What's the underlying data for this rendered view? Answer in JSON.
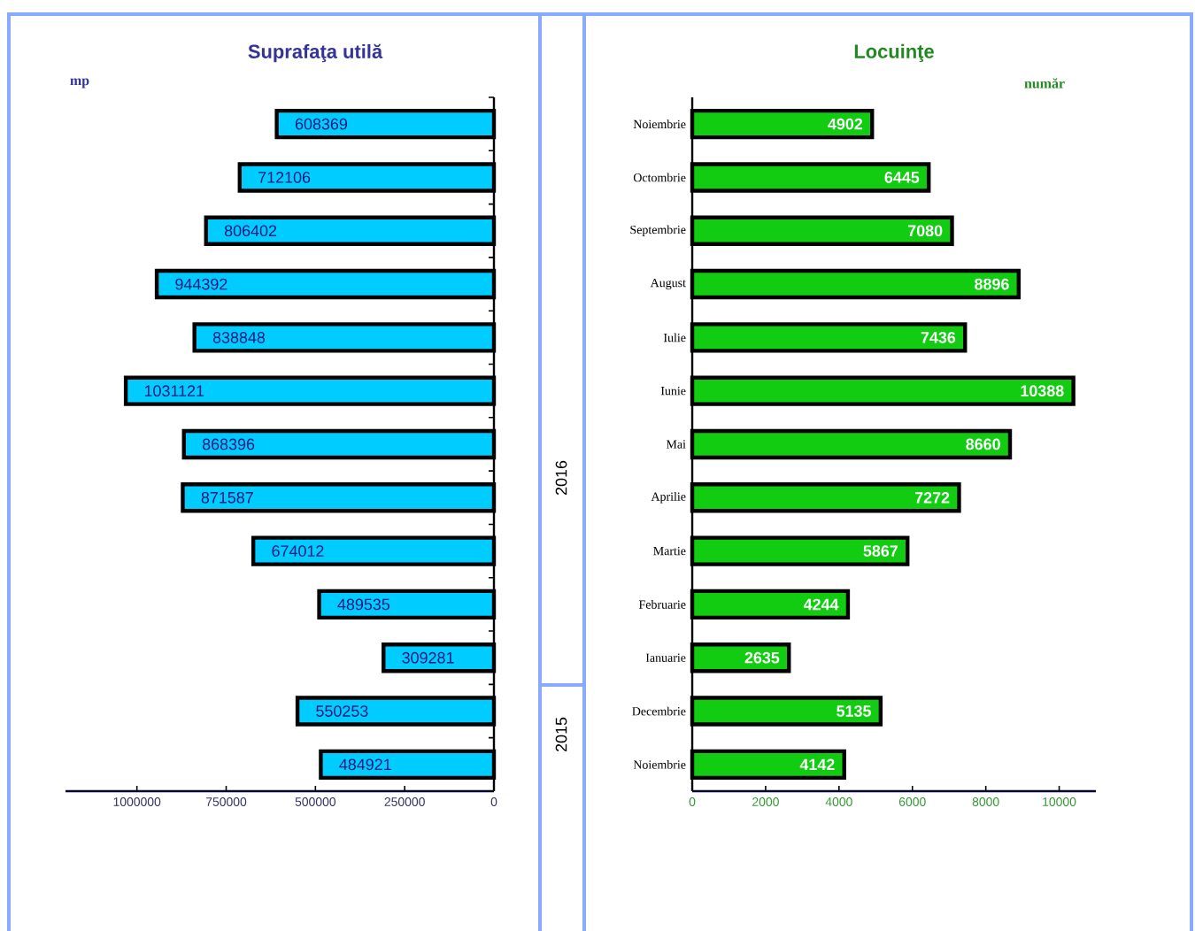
{
  "chart_data": [
    {
      "type": "bar",
      "orientation": "horizontal",
      "title": "Suprafaţa utilă",
      "xlabel": "mp",
      "categories": [
        null,
        null,
        null,
        null,
        null,
        null,
        null,
        null,
        null,
        null,
        null,
        null,
        null
      ],
      "values": [
        608369,
        712106,
        806402,
        944392,
        838848,
        1031121,
        868396,
        871587,
        674012,
        489535,
        309281,
        550253,
        484921
      ],
      "color": "#00ccff",
      "xlim": [
        1200000,
        0
      ],
      "xticks": [
        1000000,
        750000,
        500000,
        250000,
        0
      ],
      "data_labels": true,
      "tick_labels": "x"
    },
    {
      "type": "bar",
      "orientation": "horizontal",
      "title": "Locuinţe",
      "xlabel": "număr",
      "categories": [
        "Noiembrie",
        "Octombrie",
        "Septembrie",
        "August",
        "Iulie",
        "Iunie",
        "Mai",
        "Aprilie",
        "Martie",
        "Februarie",
        "Ianuarie",
        "Decembrie",
        "Noiembrie"
      ],
      "values": [
        4902,
        6445,
        7080,
        8896,
        7436,
        10388,
        8660,
        7272,
        5867,
        4244,
        2635,
        5135,
        4142
      ],
      "color": "#11cc11",
      "xlim": [
        0,
        11000
      ],
      "xticks": [
        0,
        2000,
        4000,
        6000,
        8000,
        10000
      ],
      "data_labels": true,
      "annotations": [
        "2016",
        "2015"
      ]
    }
  ]
}
